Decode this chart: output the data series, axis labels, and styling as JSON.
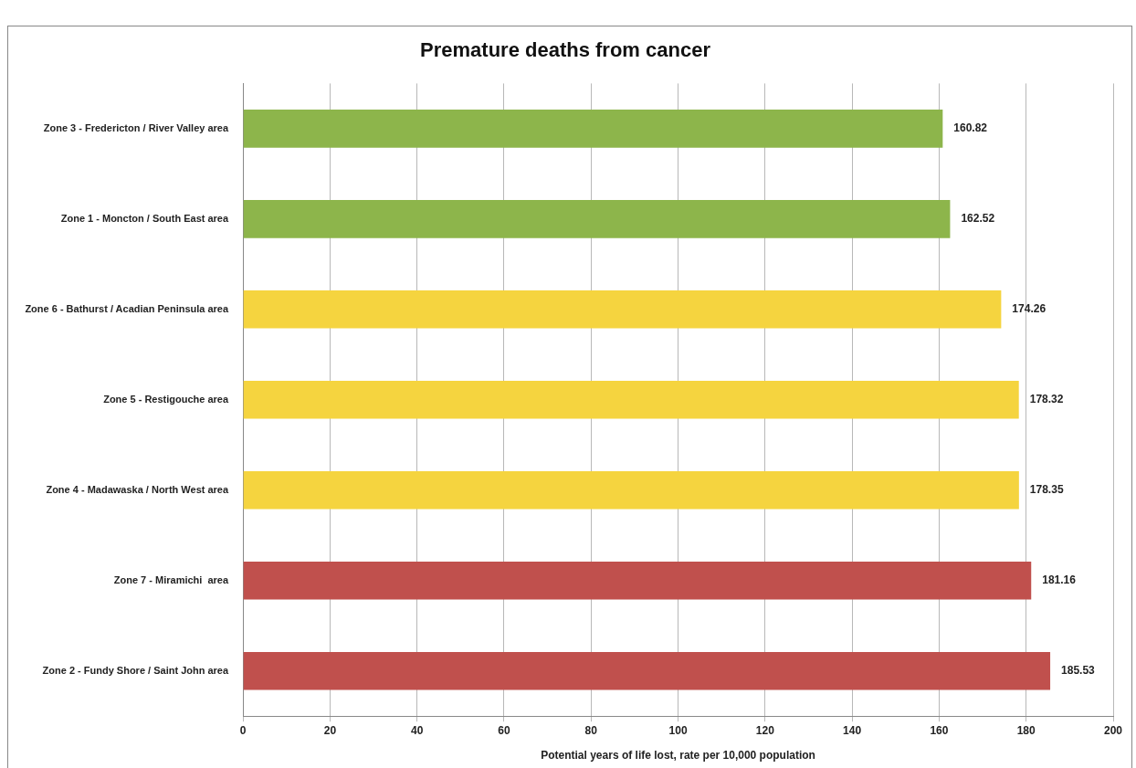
{
  "chart_data": {
    "type": "bar",
    "orientation": "horizontal",
    "title": "Premature deaths from cancer",
    "xlabel": "Potential years of life lost, rate per 10,000 population",
    "categories": [
      "Zone 3 - Fredericton / River Valley area",
      "Zone 1 - Moncton / South East area",
      "Zone 6 - Bathurst / Acadian Peninsula area",
      "Zone 5 - Restigouche area",
      "Zone 4 - Madawaska / North West area",
      "Zone 7 - Miramichi  area",
      "Zone 2 - Fundy Shore / Saint John area"
    ],
    "values": [
      160.82,
      162.52,
      174.26,
      178.32,
      178.35,
      181.16,
      185.53
    ],
    "colors": [
      "#8db54b",
      "#8db54b",
      "#f5d43f",
      "#f5d43f",
      "#f5d43f",
      "#c0504d",
      "#c0504d"
    ],
    "xlim": [
      0,
      200
    ],
    "xticks": [
      0,
      20,
      40,
      60,
      80,
      100,
      120,
      140,
      160,
      180,
      200
    ],
    "grid": "x",
    "data_labels": true,
    "legend": false
  }
}
